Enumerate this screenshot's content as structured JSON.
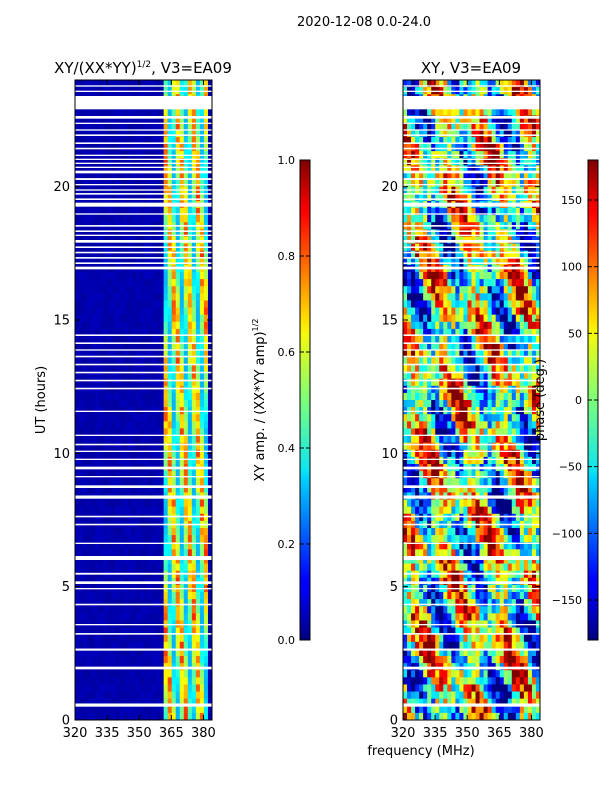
{
  "figure_title": "2020-12-08 0.0-24.0",
  "xlabel": "frequency (MHz)",
  "colors": {
    "background": "#ffffff",
    "gap": "#ffffff",
    "frame": "#000000"
  },
  "chart_data": [
    {
      "type": "heatmap",
      "title": "XY/(XX*YY)",
      "title_sup": "1/2",
      "title_suffix": ", V3=EA09",
      "xlabel": "",
      "ylabel": "UT (hours)",
      "xlim": [
        320,
        384
      ],
      "ylim": [
        0,
        24
      ],
      "xticks": [
        "320",
        "335",
        "350",
        "365",
        "380"
      ],
      "xtick_values": [
        320,
        335,
        350,
        365,
        380
      ],
      "yticks": [
        "0",
        "5",
        "10",
        "15",
        "20"
      ],
      "ytick_values": [
        0,
        5,
        10,
        15,
        20
      ],
      "colormap": "jet",
      "colorbar": {
        "label": "XY amp. / (XX*YY amp)",
        "label_sup": "1/2",
        "range": [
          0.0,
          1.0
        ],
        "ticks": [
          "0.0",
          "0.2",
          "0.4",
          "0.6",
          "0.8",
          "1.0"
        ],
        "tick_values": [
          0.0,
          0.2,
          0.4,
          0.6,
          0.8,
          1.0
        ]
      },
      "baseline_value": 0.03,
      "bright_band_mhz": [
        361,
        382
      ],
      "bright_band_value_range": [
        0.3,
        0.85
      ]
    },
    {
      "type": "heatmap",
      "title": "XY, V3=EA09",
      "xlabel": "frequency (MHz)",
      "ylabel": "",
      "xlim": [
        320,
        384
      ],
      "ylim": [
        0,
        24
      ],
      "xticks": [
        "320",
        "335",
        "350",
        "365",
        "380"
      ],
      "xtick_values": [
        320,
        335,
        350,
        365,
        380
      ],
      "yticks": [
        "0",
        "5",
        "10",
        "15",
        "20"
      ],
      "ytick_values": [
        0,
        5,
        10,
        15,
        20
      ],
      "colormap": "jet",
      "colorbar": {
        "label": "phase (deg.)",
        "range": [
          -180,
          180
        ],
        "ticks": [
          "−150",
          "−100",
          "−50",
          "0",
          "50",
          "100",
          "150"
        ],
        "tick_values": [
          -150,
          -100,
          -50,
          0,
          50,
          100,
          150
        ]
      },
      "value_range": [
        -180,
        180
      ]
    }
  ],
  "flagged_ut_ranges": [
    [
      0.5,
      0.62
    ],
    [
      1.9,
      2.0
    ],
    [
      2.6,
      2.68
    ],
    [
      3.2,
      3.26
    ],
    [
      3.55,
      3.6
    ],
    [
      4.3,
      4.36
    ],
    [
      4.9,
      4.95
    ],
    [
      5.1,
      5.2
    ],
    [
      5.45,
      5.52
    ],
    [
      6.0,
      6.15
    ],
    [
      6.6,
      6.65
    ],
    [
      7.3,
      7.36
    ],
    [
      7.6,
      7.66
    ],
    [
      8.3,
      8.42
    ],
    [
      8.7,
      8.8
    ],
    [
      9.1,
      9.15
    ],
    [
      9.4,
      9.5
    ],
    [
      9.75,
      9.8
    ],
    [
      10.05,
      10.1
    ],
    [
      10.3,
      10.36
    ],
    [
      10.65,
      10.7
    ],
    [
      11.55,
      11.6
    ],
    [
      12.4,
      12.46
    ],
    [
      12.7,
      12.76
    ],
    [
      13.0,
      13.06
    ],
    [
      13.3,
      13.36
    ],
    [
      13.6,
      13.66
    ],
    [
      13.85,
      13.9
    ],
    [
      14.1,
      14.16
    ],
    [
      14.4,
      14.46
    ],
    [
      16.9,
      17.0
    ],
    [
      17.1,
      17.16
    ],
    [
      17.3,
      17.36
    ],
    [
      17.5,
      17.56
    ],
    [
      17.7,
      17.76
    ],
    [
      17.9,
      18.0
    ],
    [
      18.15,
      18.2
    ],
    [
      18.3,
      18.36
    ],
    [
      18.5,
      18.56
    ],
    [
      18.95,
      19.0
    ],
    [
      19.25,
      19.4
    ],
    [
      19.5,
      19.56
    ],
    [
      19.7,
      19.76
    ],
    [
      19.85,
      19.9
    ],
    [
      20.05,
      20.1
    ],
    [
      20.25,
      20.32
    ],
    [
      20.5,
      20.6
    ],
    [
      20.7,
      20.75
    ],
    [
      20.85,
      20.9
    ],
    [
      21.0,
      21.05
    ],
    [
      21.15,
      21.2
    ],
    [
      21.4,
      21.46
    ],
    [
      21.6,
      21.66
    ],
    [
      21.9,
      21.96
    ],
    [
      22.1,
      22.15
    ],
    [
      22.35,
      22.4
    ],
    [
      22.55,
      22.65
    ],
    [
      22.9,
      23.4
    ],
    [
      23.55,
      23.6
    ],
    [
      23.75,
      23.8
    ]
  ]
}
